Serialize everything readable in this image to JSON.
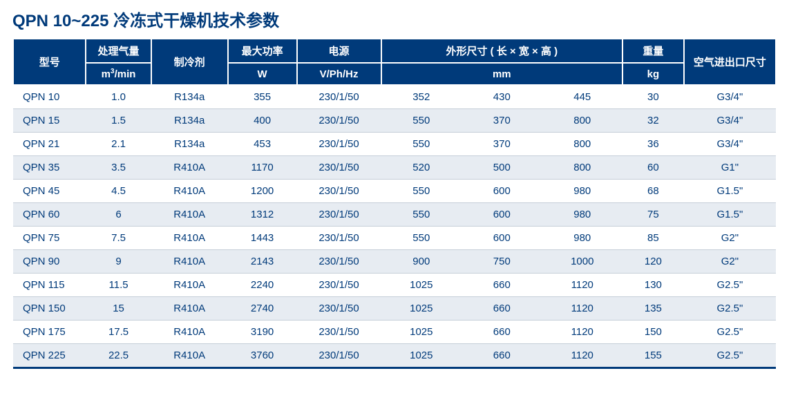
{
  "title": "QPN 10~225 冷冻式干燥机技术参数",
  "table": {
    "header": {
      "model": "型号",
      "air_flow": "处理气量",
      "air_flow_unit_pre": "m",
      "air_flow_unit_sup": "3",
      "air_flow_unit_post": "/min",
      "refrigerant": "制冷剂",
      "max_power": "最大功率",
      "max_power_unit": "W",
      "voltage": "电源",
      "voltage_unit": "V/Ph/Hz",
      "dimensions": "外形尺寸 ( 长 × 宽 × 高 )",
      "dimensions_unit": "mm",
      "weight": "重量",
      "weight_unit": "kg",
      "port": "空气进出口尺寸"
    },
    "rows": [
      {
        "model": "QPN 10",
        "air": "1.0",
        "ref": "R134a",
        "pow": "355",
        "volt": "230/1/50",
        "d1": "352",
        "d2": "430",
        "d3": "445",
        "wt": "30",
        "port": "G3/4\""
      },
      {
        "model": "QPN 15",
        "air": "1.5",
        "ref": "R134a",
        "pow": "400",
        "volt": "230/1/50",
        "d1": "550",
        "d2": "370",
        "d3": "800",
        "wt": "32",
        "port": "G3/4\""
      },
      {
        "model": "QPN 21",
        "air": "2.1",
        "ref": "R134a",
        "pow": "453",
        "volt": "230/1/50",
        "d1": "550",
        "d2": "370",
        "d3": "800",
        "wt": "36",
        "port": "G3/4\""
      },
      {
        "model": "QPN 35",
        "air": "3.5",
        "ref": "R410A",
        "pow": "1170",
        "volt": "230/1/50",
        "d1": "520",
        "d2": "500",
        "d3": "800",
        "wt": "60",
        "port": "G1\""
      },
      {
        "model": "QPN 45",
        "air": "4.5",
        "ref": "R410A",
        "pow": "1200",
        "volt": "230/1/50",
        "d1": "550",
        "d2": "600",
        "d3": "980",
        "wt": "68",
        "port": "G1.5\""
      },
      {
        "model": "QPN 60",
        "air": "6",
        "ref": "R410A",
        "pow": "1312",
        "volt": "230/1/50",
        "d1": "550",
        "d2": "600",
        "d3": "980",
        "wt": "75",
        "port": "G1.5\""
      },
      {
        "model": "QPN 75",
        "air": "7.5",
        "ref": "R410A",
        "pow": "1443",
        "volt": "230/1/50",
        "d1": "550",
        "d2": "600",
        "d3": "980",
        "wt": "85",
        "port": "G2\""
      },
      {
        "model": "QPN 90",
        "air": "9",
        "ref": "R410A",
        "pow": "2143",
        "volt": "230/1/50",
        "d1": "900",
        "d2": "750",
        "d3": "1000",
        "wt": "120",
        "port": "G2\""
      },
      {
        "model": "QPN 115",
        "air": "11.5",
        "ref": "R410A",
        "pow": "2240",
        "volt": "230/1/50",
        "d1": "1025",
        "d2": "660",
        "d3": "1120",
        "wt": "130",
        "port": "G2.5\""
      },
      {
        "model": "QPN 150",
        "air": "15",
        "ref": "R410A",
        "pow": "2740",
        "volt": "230/1/50",
        "d1": "1025",
        "d2": "660",
        "d3": "1120",
        "wt": "135",
        "port": "G2.5\""
      },
      {
        "model": "QPN 175",
        "air": "17.5",
        "ref": "R410A",
        "pow": "3190",
        "volt": "230/1/50",
        "d1": "1025",
        "d2": "660",
        "d3": "1120",
        "wt": "150",
        "port": "G2.5\""
      },
      {
        "model": "QPN 225",
        "air": "22.5",
        "ref": "R410A",
        "pow": "3760",
        "volt": "230/1/50",
        "d1": "1025",
        "d2": "660",
        "d3": "1120",
        "wt": "155",
        "port": "G2.5\""
      }
    ],
    "styling": {
      "type": "table",
      "header_bg": "#003a7a",
      "header_text_color": "#ffffff",
      "body_text_color": "#003a7a",
      "alt_row_bg": "#e7ecf2",
      "header_border": "#ffffff",
      "row_border": "#c5ced8",
      "bottom_border": "#003a7a",
      "title_color": "#003a7a",
      "title_fontsize": 24,
      "body_fontsize": 15,
      "column_widths_pct": [
        9.5,
        8.5,
        10,
        9,
        11,
        10.5,
        10.5,
        10.5,
        8,
        12
      ]
    }
  }
}
